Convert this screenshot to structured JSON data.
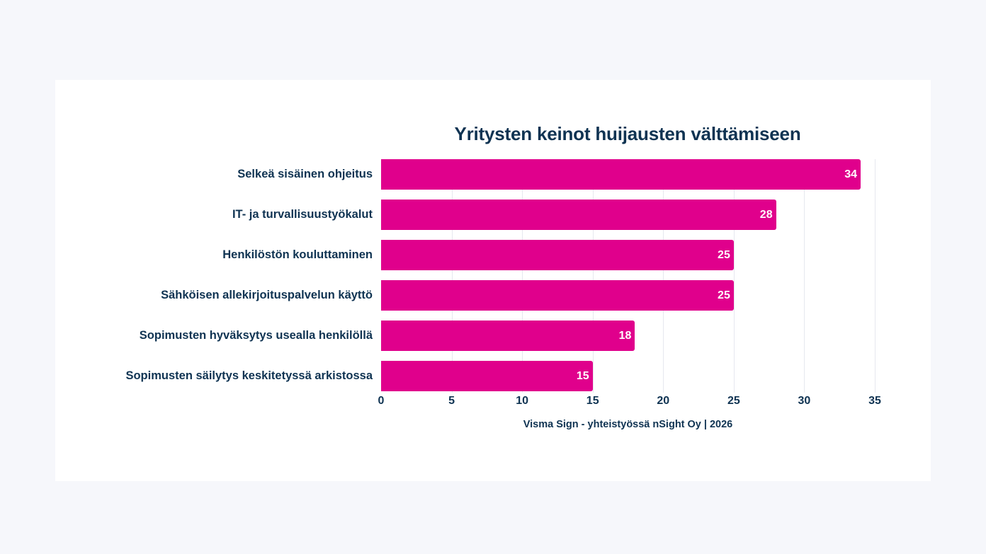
{
  "chart_data": {
    "type": "bar",
    "orientation": "horizontal",
    "title": "Yritysten keinot huijausten välttämiseen",
    "categories": [
      "Selkeä sisäinen ohjeitus",
      "IT- ja turvallisuustyökalut",
      "Henkilöstön kouluttaminen",
      "Sähköisen allekirjoituspalvelun käyttö",
      "Sopimusten hyväksytys usealla henkilöllä",
      "Sopimusten säilytys keskitetyssä arkistossa"
    ],
    "values": [
      34,
      28,
      25,
      25,
      18,
      15
    ],
    "value_labels": [
      "34",
      "28",
      "25",
      "25",
      "18",
      "15"
    ],
    "xlabel": "",
    "ylabel": "",
    "xlim": [
      0,
      35
    ],
    "xticks": [
      0,
      5,
      10,
      15,
      20,
      25,
      30,
      35
    ],
    "xtick_labels": [
      "0",
      "5",
      "10",
      "15",
      "20",
      "25",
      "30",
      "35"
    ],
    "grid": "vertical",
    "legend": "none",
    "source": "Visma Sign - yhteistyössä nSight Oy | 2026",
    "colors": {
      "bar": "#e0008c",
      "text": "#0f3352",
      "grid": "#e6e8ef",
      "card_background": "#ffffff",
      "page_background": "#f6f7fb"
    }
  }
}
